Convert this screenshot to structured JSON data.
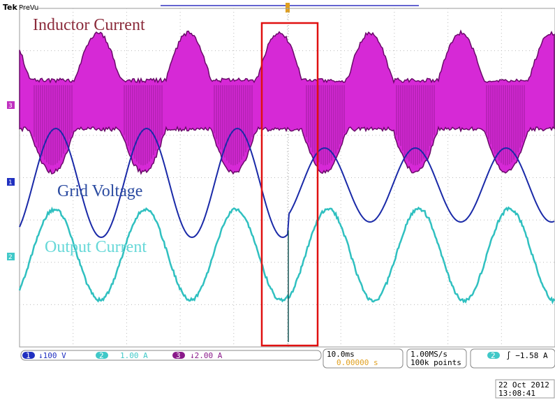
{
  "header": {
    "brand": "Tek",
    "mode": "PreVu"
  },
  "labels": {
    "inductor": "Inductor Current",
    "grid": "Grid Voltage",
    "output": "Output Current"
  },
  "markers": {
    "ch3": "3",
    "ch1": "1",
    "ch2": "2"
  },
  "status": {
    "ch1_num": "1",
    "ch1_scale": "↓100 V",
    "ch2_num": "2",
    "ch2_scale": "1.00 A",
    "ch3_num": "3",
    "ch3_scale": "↓2.00 A",
    "timebase": "10.0ms",
    "position": "0.00000 s",
    "rate": "1.00MS/s",
    "points": "100k points",
    "trig_ch": "2",
    "trig_level": "∫ −1.58 A"
  },
  "timestamp": {
    "date": "22 Oct  2012",
    "time": "13:08:41"
  }
}
